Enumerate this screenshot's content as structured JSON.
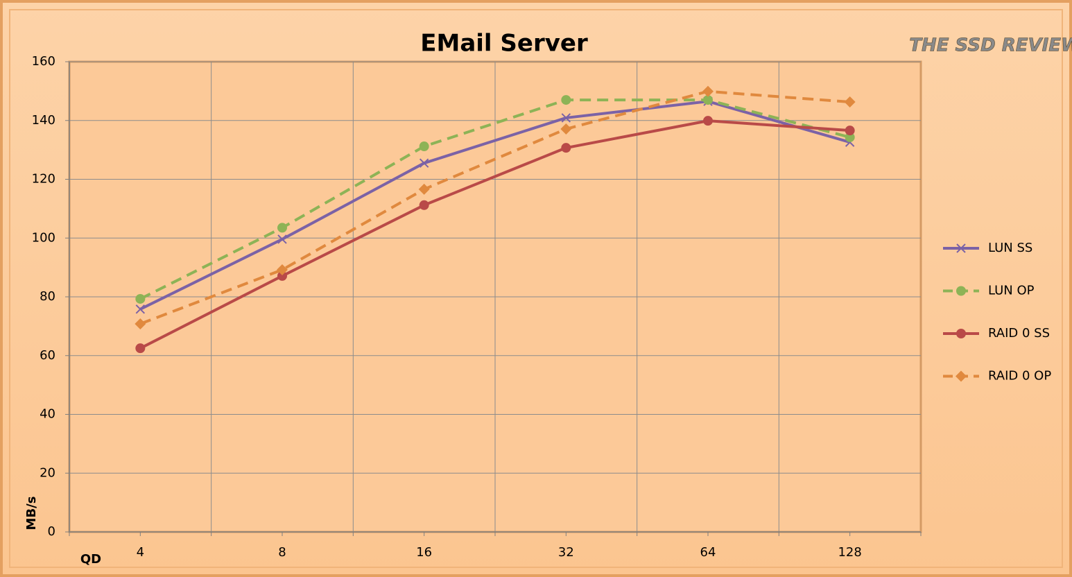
{
  "chart_data": {
    "type": "line",
    "title": "EMail Server",
    "logo": "THE SSD REVIEW",
    "y_label": "MB/s",
    "x_label": "QD",
    "categories": [
      "4",
      "8",
      "16",
      "32",
      "64",
      "128"
    ],
    "ylim": [
      0,
      160
    ],
    "yticks": [
      0,
      20,
      40,
      60,
      80,
      100,
      120,
      140,
      160
    ],
    "grid": true,
    "legend": "right",
    "series": [
      {
        "name": "LUN SS",
        "color": "#7b62a6",
        "marker": "x",
        "dashed": false,
        "values": [
          75.8,
          99.6,
          125.5,
          140.9,
          146.5,
          132.6
        ]
      },
      {
        "name": "LUN OP",
        "color": "#8db356",
        "marker": "circle",
        "dashed": true,
        "values": [
          79.3,
          103.5,
          131.2,
          147.0,
          147.0,
          134.3
        ]
      },
      {
        "name": "RAID 0 SS",
        "color": "#b94a48",
        "marker": "circle",
        "dashed": false,
        "values": [
          62.5,
          87.1,
          111.2,
          130.7,
          139.9,
          136.6
        ]
      },
      {
        "name": "RAID 0 OP",
        "color": "#e0893e",
        "marker": "diamond",
        "dashed": true,
        "values": [
          70.8,
          89.2,
          116.6,
          137.1,
          149.9,
          146.3
        ]
      }
    ]
  }
}
